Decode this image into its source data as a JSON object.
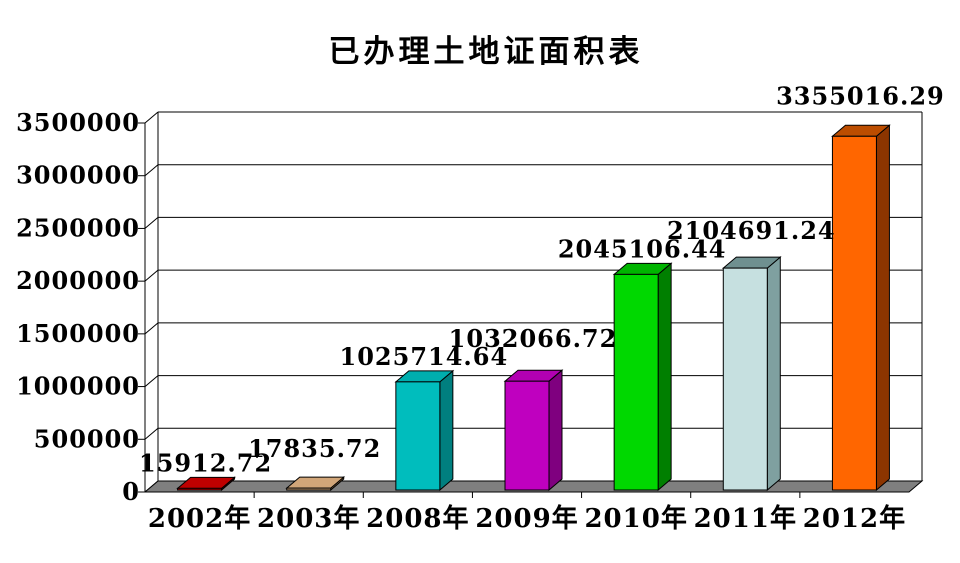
{
  "chart_data": {
    "type": "bar",
    "title": "已办理土地证面积表",
    "categories": [
      "2002年",
      "2003年",
      "2008年",
      "2009年",
      "2010年",
      "2011年",
      "2012年"
    ],
    "values": [
      15912.72,
      17835.72,
      1025714.64,
      1032066.72,
      2045106.44,
      2104691.24,
      3355016.29
    ],
    "data_labels": [
      "15912.72",
      "17835.72",
      "1025714.64",
      "1032066.72",
      "2045106.44",
      "2104691.24",
      "3355016.29"
    ],
    "y_ticks": [
      "0",
      "500000",
      "1000000",
      "1500000",
      "2000000",
      "2500000",
      "3000000",
      "3500000"
    ],
    "ylim": [
      0,
      3500000
    ],
    "xlabel": "",
    "ylabel": "",
    "grid": true,
    "legend": false,
    "style": "3d-bar",
    "bar_colors": [
      {
        "front": "#cc0000",
        "top": "#bf0000",
        "side": "#7f0000"
      },
      {
        "front": "#d2a679",
        "top": "#d2a679",
        "side": "#9c7347"
      },
      {
        "front": "#00bdbd",
        "top": "#00aeae",
        "side": "#007f7f"
      },
      {
        "front": "#bf00bf",
        "top": "#b200b2",
        "side": "#7f007f"
      },
      {
        "front": "#00d800",
        "top": "#00b400",
        "side": "#007f00"
      },
      {
        "front": "#c6e0e0",
        "top": "#6f9090",
        "side": "#7fa0a0"
      },
      {
        "front": "#ff6600",
        "top": "#bc4d00",
        "side": "#8c3500"
      }
    ],
    "floor_color": "#7f7f7f",
    "axis_color": "#000000",
    "background_color": "#ffffff"
  }
}
